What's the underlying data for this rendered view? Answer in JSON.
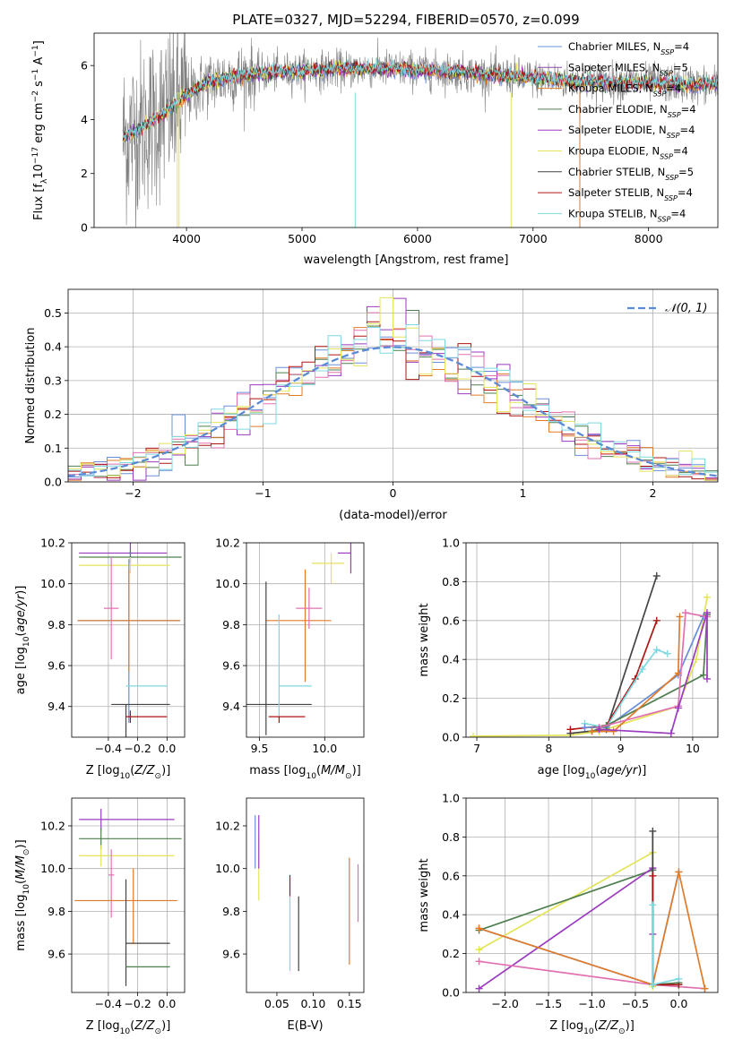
{
  "chart_data": [
    {
      "id": "spectrum",
      "type": "line",
      "title": "PLATE=0327, MJD=52294, FIBERID=0570, z=0.099",
      "xlabel": "wavelength [Angstrom, rest frame]",
      "ylabel": "Flux [f_λ 10^-17 erg cm^-2 s^-1 A^-1]",
      "xlim": [
        3200,
        8600
      ],
      "ylim": [
        0,
        7.2
      ],
      "xticks": [
        4000,
        5000,
        6000,
        7000,
        8000
      ],
      "yticks": [
        0,
        2,
        4,
        6
      ],
      "grid": false,
      "legend_position": "right",
      "series": [
        {
          "name": "Chabrier MILES",
          "nssp": "4",
          "color": "#6a8fd8"
        },
        {
          "name": "Salpeter MILES",
          "nssp": "5",
          "color": "#8a4aa8"
        },
        {
          "name": "Kroupa MILES",
          "nssp": "4",
          "color": "#e07b2a"
        },
        {
          "name": "Chabrier ELODIE",
          "nssp": "4",
          "color": "#4f7f4f"
        },
        {
          "name": "Salpeter ELODIE",
          "nssp": "4",
          "color": "#9b3bbf"
        },
        {
          "name": "Kroupa ELODIE",
          "nssp": "4",
          "color": "#e4e45a"
        },
        {
          "name": "Chabrier STELIB",
          "nssp": "5",
          "color": "#444444"
        },
        {
          "name": "Salpeter STELIB",
          "nssp": "4",
          "color": "#b01515"
        },
        {
          "name": "Kroupa STELIB",
          "nssp": "4",
          "color": "#7fd8e0"
        }
      ],
      "data_color": "#808080",
      "approx_continuum": {
        "x": [
          3450,
          3600,
          3800,
          4000,
          4200,
          4400,
          4600,
          4800,
          5000,
          5300,
          5600,
          5900,
          6200,
          6500,
          6800,
          7100,
          7400,
          7700,
          8000,
          8300,
          8600
        ],
        "y": [
          3.3,
          3.7,
          4.2,
          4.9,
          5.4,
          5.6,
          5.7,
          5.75,
          5.8,
          5.85,
          5.9,
          5.85,
          5.8,
          5.7,
          5.6,
          5.5,
          5.4,
          5.4,
          5.35,
          5.3,
          5.3
        ]
      }
    },
    {
      "id": "residuals",
      "type": "bar",
      "xlabel": "(data-model)/error",
      "ylabel": "Normed distribution",
      "xlim": [
        -2.5,
        2.5
      ],
      "ylim": [
        0,
        0.57
      ],
      "xticks": [
        -2,
        -1,
        0,
        1,
        2
      ],
      "yticks": [
        0.0,
        0.1,
        0.2,
        0.3,
        0.4,
        0.5
      ],
      "grid": true,
      "legend_position": "top-right",
      "gaussian_label": "𝒩(0, 1)",
      "gaussian_color": "#5b8ad6",
      "bin_width": 0.1,
      "bin_start": -2.5,
      "histogram_colors": [
        "#6a8fd8",
        "#4f7f4f",
        "#e07b2a",
        "#9b3bbf",
        "#e070b0",
        "#b01515",
        "#e4e45a",
        "#7fd8e0"
      ]
    },
    {
      "id": "age-vs-Z",
      "type": "scatter",
      "xlabel": "Z [log10(Z/Z⊙)]",
      "ylabel": "age  [log10(age/yr)]",
      "xlim": [
        -0.65,
        0.12
      ],
      "ylim": [
        9.25,
        10.2
      ],
      "xticks": [
        -0.4,
        -0.2,
        0.0
      ],
      "yticks": [
        9.4,
        9.6,
        9.8,
        10.0,
        10.2
      ],
      "grid": true,
      "points": [
        {
          "x": -0.25,
          "y": 10.15,
          "xerr": [
            0.35,
            0.25
          ],
          "yerr": [
            0.05,
            0.05
          ],
          "color": "#9b3bbf"
        },
        {
          "x": -0.25,
          "y": 10.13,
          "xerr": [
            0.35,
            0.35
          ],
          "yerr": [
            0.03,
            0.03
          ],
          "color": "#4f7f4f"
        },
        {
          "x": -0.25,
          "y": 10.09,
          "xerr": [
            0.35,
            0.27
          ],
          "yerr": [
            0.04,
            0.04
          ],
          "color": "#e4e45a"
        },
        {
          "x": -0.26,
          "y": 9.82,
          "xerr": [
            0.35,
            0.35
          ],
          "yerr": [
            0.5,
            0.3
          ],
          "color": "#6a8fd8"
        },
        {
          "x": -0.26,
          "y": 9.82,
          "xerr": [
            0.35,
            0.35
          ],
          "yerr": [
            0.25,
            0.25
          ],
          "color": "#e07b2a"
        },
        {
          "x": -0.38,
          "y": 9.88,
          "xerr": [
            0.05,
            0.05
          ],
          "yerr": [
            0.25,
            0.25
          ],
          "color": "#e070b0"
        },
        {
          "x": -0.28,
          "y": 9.41,
          "xerr": [
            0.1,
            0.3
          ],
          "yerr": [
            0.6,
            0.0
          ],
          "color": "#444444"
        },
        {
          "x": -0.25,
          "y": 9.5,
          "xerr": [
            0.03,
            0.25
          ],
          "yerr": [
            0.0,
            0.0
          ],
          "color": "#7fd8e0"
        },
        {
          "x": -0.25,
          "y": 9.35,
          "xerr": [
            0.03,
            0.25
          ],
          "yerr": [
            0.03,
            0.03
          ],
          "color": "#b01515"
        }
      ]
    },
    {
      "id": "age-vs-mass",
      "type": "scatter",
      "xlabel": "mass [log10(M/M⊙)]",
      "ylabel": "",
      "xlim": [
        9.4,
        10.3
      ],
      "ylim": [
        9.25,
        10.2
      ],
      "xticks": [
        9.5,
        10.0
      ],
      "yticks": [
        9.4,
        9.6,
        9.8,
        10.0,
        10.2
      ],
      "grid": true,
      "points": [
        {
          "x": 10.2,
          "y": 10.15,
          "xerr": [
            0.1,
            0.0
          ],
          "yerr": [
            0.1,
            0.05
          ],
          "color": "#9b3bbf"
        },
        {
          "x": 10.05,
          "y": 10.1,
          "xerr": [
            0.15,
            0.1
          ],
          "yerr": [
            0.1,
            0.05
          ],
          "color": "#e4e45a"
        },
        {
          "x": 9.85,
          "y": 9.82,
          "xerr": [
            0.3,
            0.2
          ],
          "yerr": [
            0.3,
            0.25
          ],
          "color": "#e07b2a"
        },
        {
          "x": 9.88,
          "y": 9.88,
          "xerr": [
            0.1,
            0.1
          ],
          "yerr": [
            0.1,
            0.1
          ],
          "color": "#e070b0"
        },
        {
          "x": 9.55,
          "y": 9.41,
          "xerr": [
            0.15,
            0.35
          ],
          "yerr": [
            0.15,
            0.6
          ],
          "color": "#444444"
        },
        {
          "x": 9.65,
          "y": 9.5,
          "xerr": [
            0.0,
            0.25
          ],
          "yerr": [
            0.15,
            0.35
          ],
          "color": "#7fd8e0"
        },
        {
          "x": 9.65,
          "y": 9.35,
          "xerr": [
            0.08,
            0.2
          ],
          "yerr": [
            0.03,
            0.0
          ],
          "color": "#b01515"
        }
      ]
    },
    {
      "id": "massweight-vs-age",
      "type": "line",
      "xlabel": "age  [log10(age/yr)]",
      "ylabel": "mass weight",
      "xlim": [
        6.85,
        10.35
      ],
      "ylim": [
        0,
        1
      ],
      "xticks": [
        7,
        8,
        9,
        10
      ],
      "yticks": [
        0.0,
        0.2,
        0.4,
        0.6,
        0.8,
        1.0
      ],
      "grid": true,
      "series": [
        {
          "color": "#e4e45a",
          "x": [
            6.95,
            8.3,
            8.7,
            9.8,
            10.05,
            10.2
          ],
          "y": [
            0.005,
            0.01,
            0.03,
            0.16,
            0.4,
            0.72
          ]
        },
        {
          "color": "#444444",
          "x": [
            8.3,
            8.8,
            9.5
          ],
          "y": [
            0.02,
            0.04,
            0.83
          ]
        },
        {
          "color": "#b01515",
          "x": [
            8.3,
            8.8,
            9.2,
            9.5
          ],
          "y": [
            0.04,
            0.06,
            0.3,
            0.6
          ]
        },
        {
          "color": "#7fd8e0",
          "x": [
            8.5,
            8.8,
            9.3,
            9.5,
            9.65
          ],
          "y": [
            0.07,
            0.05,
            0.35,
            0.45,
            0.43
          ]
        },
        {
          "color": "#6a8fd8",
          "x": [
            8.5,
            8.8,
            9.8,
            10.15
          ],
          "y": [
            0.05,
            0.05,
            0.32,
            0.62
          ]
        },
        {
          "color": "#4f7f4f",
          "x": [
            8.6,
            8.8,
            10.15,
            10.2
          ],
          "y": [
            0.03,
            0.06,
            0.32,
            0.63
          ]
        },
        {
          "color": "#e07b2a",
          "x": [
            8.6,
            8.9,
            9.8,
            9.82
          ],
          "y": [
            0.03,
            0.03,
            0.33,
            0.62
          ]
        },
        {
          "color": "#e070b0",
          "x": [
            8.7,
            9.8,
            9.9,
            10.2
          ],
          "y": [
            0.05,
            0.16,
            0.64,
            0.62
          ]
        },
        {
          "color": "#9b3bbf",
          "x": [
            8.7,
            9.7,
            9.8,
            10.2,
            10.2
          ],
          "y": [
            0.04,
            0.02,
            0.15,
            0.64,
            0.3
          ]
        }
      ]
    },
    {
      "id": "mass-vs-Z",
      "type": "scatter",
      "xlabel": "Z [log10(Z/Z⊙)]",
      "ylabel": "mass [log10(M/M⊙)]",
      "xlim": [
        -0.65,
        0.12
      ],
      "ylim": [
        9.42,
        10.33
      ],
      "xticks": [
        -0.4,
        -0.2,
        0.0
      ],
      "yticks": [
        9.6,
        9.8,
        10.0,
        10.2
      ],
      "grid": true,
      "points": [
        {
          "x": -0.45,
          "y": 10.23,
          "xerr": [
            0.15,
            0.5
          ],
          "yerr": [
            0.05,
            0.05
          ],
          "color": "#9b3bbf"
        },
        {
          "x": -0.45,
          "y": 10.14,
          "xerr": [
            0.15,
            0.55
          ],
          "yerr": [
            0.05,
            0.05
          ],
          "color": "#4f7f4f"
        },
        {
          "x": -0.45,
          "y": 10.06,
          "xerr": [
            0.15,
            0.5
          ],
          "yerr": [
            0.05,
            0.05
          ],
          "color": "#e4e45a"
        },
        {
          "x": -0.38,
          "y": 9.97,
          "xerr": [
            0.02,
            0.02
          ],
          "yerr": [
            0.2,
            0.12
          ],
          "color": "#e070b0"
        },
        {
          "x": -0.23,
          "y": 9.85,
          "xerr": [
            0.4,
            0.3
          ],
          "yerr": [
            0.2,
            0.15
          ],
          "color": "#e07b2a"
        },
        {
          "x": -0.28,
          "y": 9.65,
          "xerr": [
            0.0,
            0.3
          ],
          "yerr": [
            0.2,
            0.3
          ],
          "color": "#444444"
        },
        {
          "x": -0.28,
          "y": 9.54,
          "xerr": [
            0.0,
            0.3
          ],
          "yerr": [
            0.0,
            0.0
          ],
          "color": "#4f7f4f"
        }
      ]
    },
    {
      "id": "mass-vs-ebv",
      "type": "scatter",
      "xlabel": "E(B-V)",
      "ylabel": "",
      "xlim": [
        0.008,
        0.17
      ],
      "ylim": [
        9.42,
        10.33
      ],
      "xticks": [
        0.05,
        0.1,
        0.15
      ],
      "yticks": [
        9.6,
        9.8,
        10.0,
        10.2
      ],
      "grid": false,
      "points": [
        {
          "x": 0.02,
          "y": 10.1,
          "yerr": [
            0.1,
            0.15
          ],
          "color": "#6a8fd8"
        },
        {
          "x": 0.025,
          "y": 10.0,
          "yerr": [
            0.15,
            0.15
          ],
          "color": "#e4e45a"
        },
        {
          "x": 0.025,
          "y": 10.1,
          "yerr": [
            0.1,
            0.15
          ],
          "color": "#9b3bbf"
        },
        {
          "x": 0.068,
          "y": 9.92,
          "yerr": [
            0.05,
            0.05
          ],
          "color": "#b01515"
        },
        {
          "x": 0.068,
          "y": 9.72,
          "yerr": [
            0.2,
            0.15
          ],
          "color": "#7fd8e0"
        },
        {
          "x": 0.08,
          "y": 9.72,
          "yerr": [
            0.2,
            0.15
          ],
          "color": "#444444"
        },
        {
          "x": 0.15,
          "y": 9.8,
          "yerr": [
            0.25,
            0.25
          ],
          "color": "#e07b2a"
        },
        {
          "x": 0.162,
          "y": 9.87,
          "yerr": [
            0.12,
            0.15
          ],
          "color": "#e070b0"
        }
      ]
    },
    {
      "id": "massweight-vs-Z",
      "type": "line",
      "xlabel": "Z [log10(Z/Z⊙)]",
      "ylabel": "mass weight",
      "xlim": [
        -2.45,
        0.45
      ],
      "ylim": [
        0,
        1
      ],
      "xticks": [
        -2.0,
        -1.5,
        -1.0,
        -0.5,
        0.0
      ],
      "yticks": [
        0.0,
        0.2,
        0.4,
        0.6,
        0.8,
        1.0
      ],
      "grid": true,
      "series": [
        {
          "color": "#e4e45a",
          "x": [
            -2.3,
            -0.3,
            -0.3
          ],
          "y": [
            0.22,
            0.72,
            0.03
          ]
        },
        {
          "color": "#4f7f4f",
          "x": [
            -2.3,
            -0.3,
            -0.3,
            0.0
          ],
          "y": [
            0.32,
            0.63,
            0.04,
            0.05
          ]
        },
        {
          "color": "#9b3bbf",
          "x": [
            -2.3,
            -0.3,
            -0.3
          ],
          "y": [
            0.02,
            0.64,
            0.3
          ]
        },
        {
          "color": "#e070b0",
          "x": [
            -2.3,
            -0.3,
            0.3
          ],
          "y": [
            0.16,
            0.04,
            0.02
          ]
        },
        {
          "color": "#6a8fd8",
          "x": [
            -2.3,
            -0.3,
            0.0
          ],
          "y": [
            0.33,
            0.04,
            0.62
          ]
        },
        {
          "color": "#e07b2a",
          "x": [
            -2.3,
            -0.3,
            0.0,
            0.3
          ],
          "y": [
            0.33,
            0.04,
            0.62,
            0.02
          ]
        },
        {
          "color": "#444444",
          "x": [
            -0.3,
            -0.3,
            0.0
          ],
          "y": [
            0.83,
            0.04,
            0.04
          ]
        },
        {
          "color": "#b01515",
          "x": [
            -0.3,
            -0.3,
            0.0
          ],
          "y": [
            0.6,
            0.04,
            0.04
          ]
        },
        {
          "color": "#7fd8e0",
          "x": [
            -0.3,
            -0.3,
            0.0
          ],
          "y": [
            0.45,
            0.04,
            0.07
          ]
        }
      ]
    }
  ]
}
